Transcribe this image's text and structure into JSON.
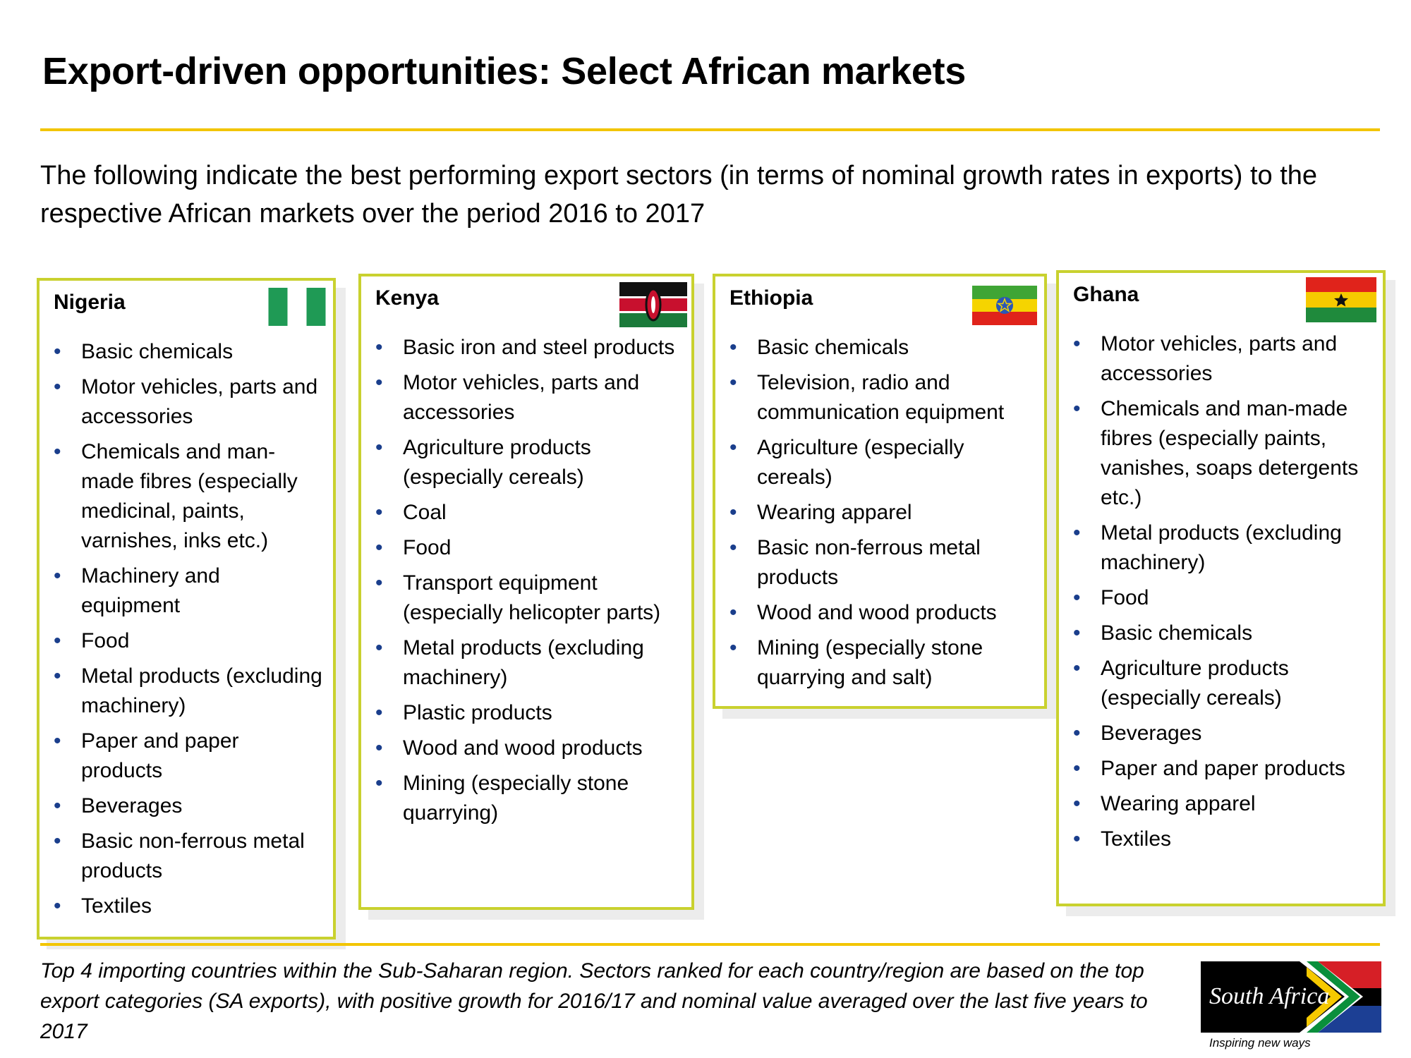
{
  "title": "Export-driven opportunities: Select African markets",
  "subtitle": "The following indicate the best performing export sectors (in terms of nominal growth rates in exports) to the respective African markets over the period 2016 to 2017",
  "colors": {
    "accent_yellow": "#f2c500",
    "card_border": "#c9d12f",
    "bullet_blue": "#1a3e8c"
  },
  "countries": [
    {
      "name": "Nigeria",
      "flag_icon": "nigeria-flag-icon",
      "items": [
        "Basic chemicals",
        "Motor vehicles, parts and accessories",
        "Chemicals and man-made fibres (especially medicinal, paints, varnishes, inks etc.)",
        "Machinery and equipment",
        "Food",
        "Metal products (excluding machinery)",
        "Paper and paper products",
        "Beverages",
        "Basic non-ferrous metal products",
        "Textiles"
      ]
    },
    {
      "name": "Kenya",
      "flag_icon": "kenya-flag-icon",
      "items": [
        "Basic iron and steel products",
        "Motor vehicles, parts and accessories",
        "Agriculture products (especially cereals)",
        "Coal",
        "Food",
        "Transport equipment (especially helicopter parts)",
        "Metal products (excluding machinery)",
        "Plastic products",
        "Wood and wood products",
        "Mining (especially stone quarrying)"
      ]
    },
    {
      "name": "Ethiopia",
      "flag_icon": "ethiopia-flag-icon",
      "items": [
        "Basic chemicals",
        "Television, radio and communication equipment",
        "Agriculture (especially cereals)",
        "Wearing apparel",
        "Basic non-ferrous metal products",
        "Wood and wood products",
        "Mining (especially stone quarrying and salt)"
      ]
    },
    {
      "name": "Ghana",
      "flag_icon": "ghana-flag-icon",
      "items": [
        "Motor vehicles, parts and accessories",
        "Chemicals and man-made fibres (especially paints, vanishes, soaps detergents etc.)",
        "Metal products (excluding machinery)",
        "Food",
        "Basic chemicals",
        "Agriculture products (especially cereals)",
        "Beverages",
        "Paper and paper products",
        "Wearing apparel",
        "Textiles"
      ]
    }
  ],
  "footnote": "Top 4 importing countries within the Sub-Saharan region. Sectors ranked for each country/region are based on the top export categories (SA exports), with positive growth for 2016/17 and nominal value averaged over the last five years to 2017",
  "logo": {
    "brand": "South Africa",
    "tagline": "Inspiring new ways",
    "icon": "south-africa-logo-icon"
  }
}
